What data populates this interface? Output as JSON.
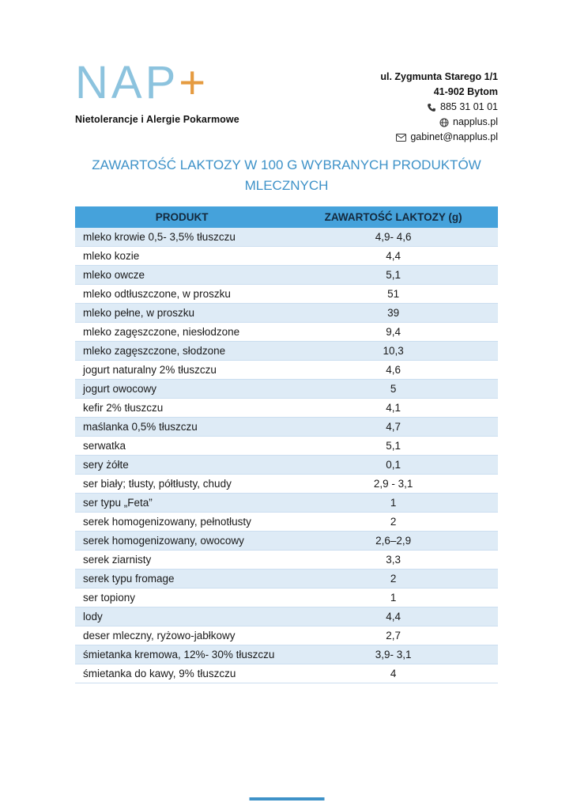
{
  "page": {
    "logo": {
      "text": "NAP",
      "plus": "+",
      "tagline": "Nietolerancje i Alergie Pokarmowe"
    },
    "contact": {
      "address_line1": "ul. Zygmunta Starego 1/1",
      "address_line2": "41-902 Bytom",
      "phone": "885 31 01 01",
      "website": "napplus.pl",
      "email": "gabinet@napplus.pl"
    },
    "title": "ZAWARTOŚĆ LAKTOZY W 100 G WYBRANYCH PRODUKTÓW MLECZNYCH"
  },
  "table": {
    "columns": [
      "PRODUKT",
      "ZAWARTOŚĆ LAKTOZY (g)"
    ],
    "rows": [
      [
        "mleko krowie 0,5- 3,5% tłuszczu",
        "4,9- 4,6"
      ],
      [
        "mleko kozie",
        "4,4"
      ],
      [
        "mleko owcze",
        "5,1"
      ],
      [
        "mleko odtłuszczone, w proszku",
        "51"
      ],
      [
        "mleko pełne, w proszku",
        "39"
      ],
      [
        "mleko zagęszczone, niesłodzone",
        "9,4"
      ],
      [
        "mleko zagęszczone, słodzone",
        "10,3"
      ],
      [
        "jogurt naturalny 2% tłuszczu",
        "4,6"
      ],
      [
        "jogurt owocowy",
        "5"
      ],
      [
        "kefir 2% tłuszczu",
        "4,1"
      ],
      [
        "maślanka 0,5% tłuszczu",
        "4,7"
      ],
      [
        "serwatka",
        "5,1"
      ],
      [
        "sery żółte",
        "0,1"
      ],
      [
        "ser biały; tłusty, półtłusty, chudy",
        "2,9 - 3,1"
      ],
      [
        "ser typu „Feta”",
        "1"
      ],
      [
        "serek homogenizowany, pełnotłusty",
        "2"
      ],
      [
        "serek homogenizowany, owocowy",
        "2,6–2,9"
      ],
      [
        "serek ziarnisty",
        "3,3"
      ],
      [
        "serek typu fromage",
        "2"
      ],
      [
        "ser topiony",
        "1"
      ],
      [
        "lody",
        "4,4"
      ],
      [
        "deser mleczny, ryżowo-jabłkowy",
        "2,7"
      ],
      [
        "śmietanka kremowa, 12%-  30% tłuszczu",
        "3,9- 3,1"
      ],
      [
        "śmietanka do kawy, 9% tłuszczu",
        "4"
      ]
    ]
  },
  "colors": {
    "logo_blue": "#8cc3de",
    "logo_orange": "#e59b40",
    "title_blue": "#3e92c8",
    "table_header_blue": "#45a2db",
    "row_shade_blue": "#deebf6"
  }
}
